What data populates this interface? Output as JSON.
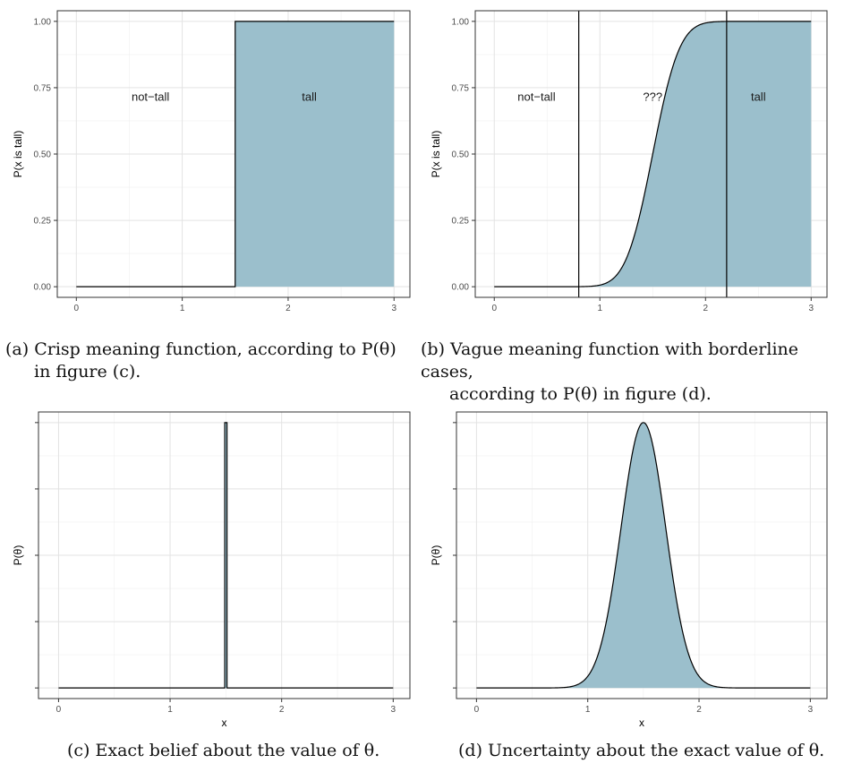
{
  "chart_data": [
    {
      "id": "a",
      "type": "area",
      "subtype": "step",
      "ylabel": "P(x is tall)",
      "xlabel": "",
      "xlim": [
        -0.18,
        3.15
      ],
      "ylim": [
        -0.04,
        1.04
      ],
      "x_ticks": [
        "0",
        "1",
        "2",
        "3"
      ],
      "y_ticks": [
        "0.00",
        "0.25",
        "0.50",
        "0.75",
        "1.00"
      ],
      "grid": true,
      "fill_color": "#9bbfcc",
      "line_color": "#000000",
      "series": [
        {
          "x": [
            0,
            1.5,
            1.5,
            3
          ],
          "y": [
            0,
            0,
            1,
            1
          ]
        }
      ],
      "annotations": [
        {
          "text": "not−tall",
          "x": 0.7,
          "y": 0.7
        },
        {
          "text": "tall",
          "x": 2.2,
          "y": 0.7
        }
      ],
      "caption_label": "(a)",
      "caption_line1": "Crisp meaning function, according to P(θ)",
      "caption_line2": "in figure (c)."
    },
    {
      "id": "b",
      "type": "area",
      "subtype": "sigmoid-cdf",
      "ylabel": "P(x is tall)",
      "xlabel": "",
      "xlim": [
        -0.18,
        3.15
      ],
      "ylim": [
        -0.04,
        1.04
      ],
      "x_ticks": [
        "0",
        "1",
        "2",
        "3"
      ],
      "y_ticks": [
        "0.00",
        "0.25",
        "0.50",
        "0.75",
        "1.00"
      ],
      "grid": true,
      "fill_color": "#9bbfcc",
      "line_color": "#000000",
      "distribution": {
        "family": "normal-cdf",
        "mean": 1.5,
        "sd": 0.2,
        "min": 0,
        "max": 3
      },
      "vlines": [
        0.8,
        2.2
      ],
      "annotations": [
        {
          "text": "not−tall",
          "x": 0.4,
          "y": 0.7
        },
        {
          "text": "???",
          "x": 1.5,
          "y": 0.7
        },
        {
          "text": "tall",
          "x": 2.5,
          "y": 0.7
        }
      ],
      "caption_label": "(b)",
      "caption_line1": "Vague meaning function with borderline cases,",
      "caption_line2": "according to P(θ) in figure (d)."
    },
    {
      "id": "c",
      "type": "area",
      "subtype": "spike",
      "ylabel": "P(θ)",
      "xlabel": "x",
      "xlim": [
        -0.18,
        3.15
      ],
      "ylim": [
        -0.04,
        1.04
      ],
      "x_ticks": [
        "0",
        "1",
        "2",
        "3"
      ],
      "y_ticks": [
        "",
        "",
        "",
        "",
        ""
      ],
      "grid": true,
      "fill_color": "#9bbfcc",
      "line_color": "#000000",
      "spike": {
        "x_start": 1.49,
        "x_end": 1.51,
        "height": 1.0,
        "min": 0,
        "max": 3
      },
      "caption_line1": "(c) Exact belief about the value of θ."
    },
    {
      "id": "d",
      "type": "area",
      "subtype": "density",
      "ylabel": "P(θ)",
      "xlabel": "x",
      "xlim": [
        -0.18,
        3.15
      ],
      "ylim": [
        -0.04,
        1.04
      ],
      "x_ticks": [
        "0",
        "1",
        "2",
        "3"
      ],
      "y_ticks": [
        "",
        "",
        "",
        "",
        ""
      ],
      "grid": true,
      "fill_color": "#9bbfcc",
      "line_color": "#000000",
      "distribution": {
        "family": "normal-pdf",
        "mean": 1.5,
        "sd": 0.2,
        "min": 0,
        "max": 3
      },
      "caption_line1": "(d) Uncertainty about the exact value of θ."
    }
  ]
}
